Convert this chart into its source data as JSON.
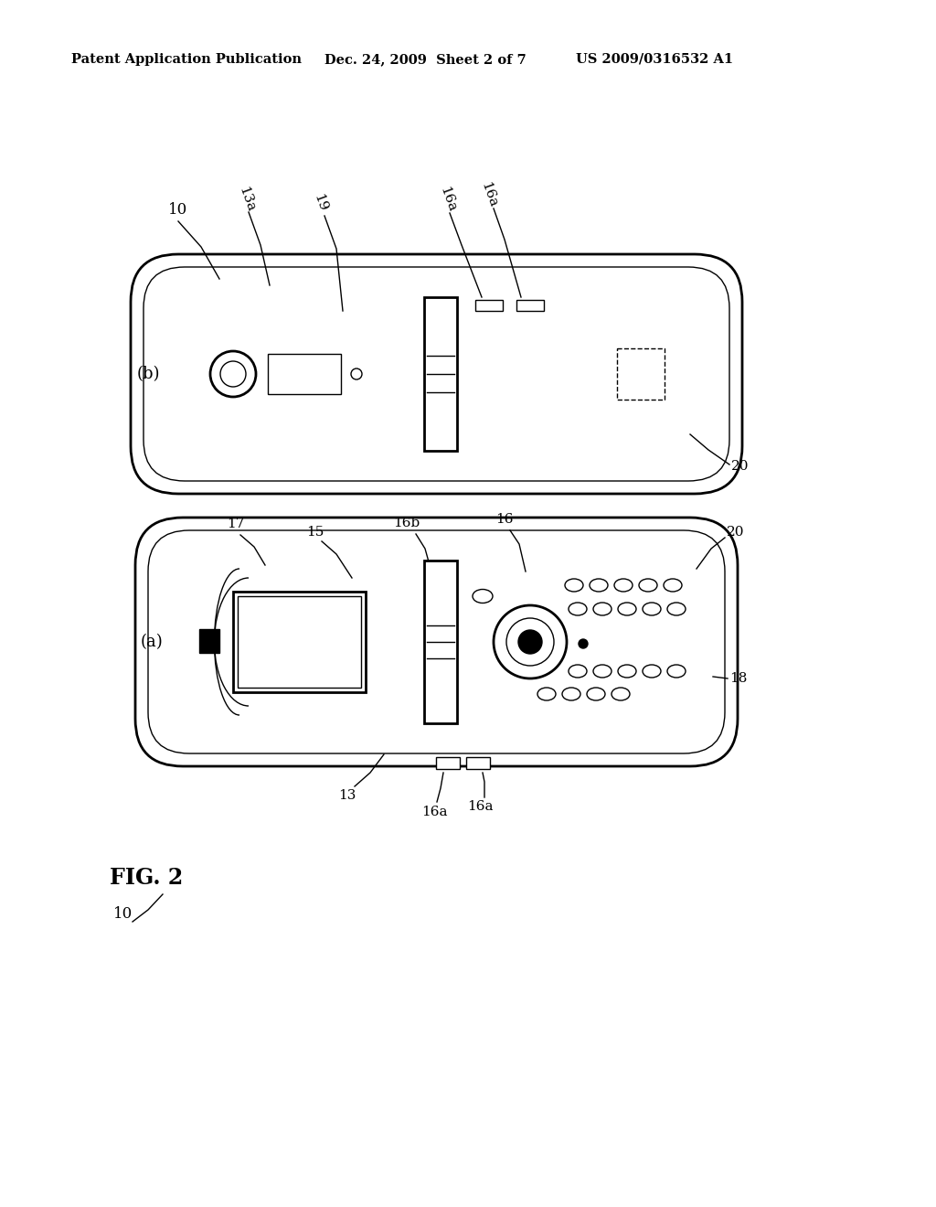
{
  "bg_color": "#ffffff",
  "line_color": "#000000",
  "header_left": "Patent Application Publication",
  "header_mid": "Dec. 24, 2009  Sheet 2 of 7",
  "header_right": "US 2009/0316532 A1",
  "fig_label": "FIG. 2"
}
